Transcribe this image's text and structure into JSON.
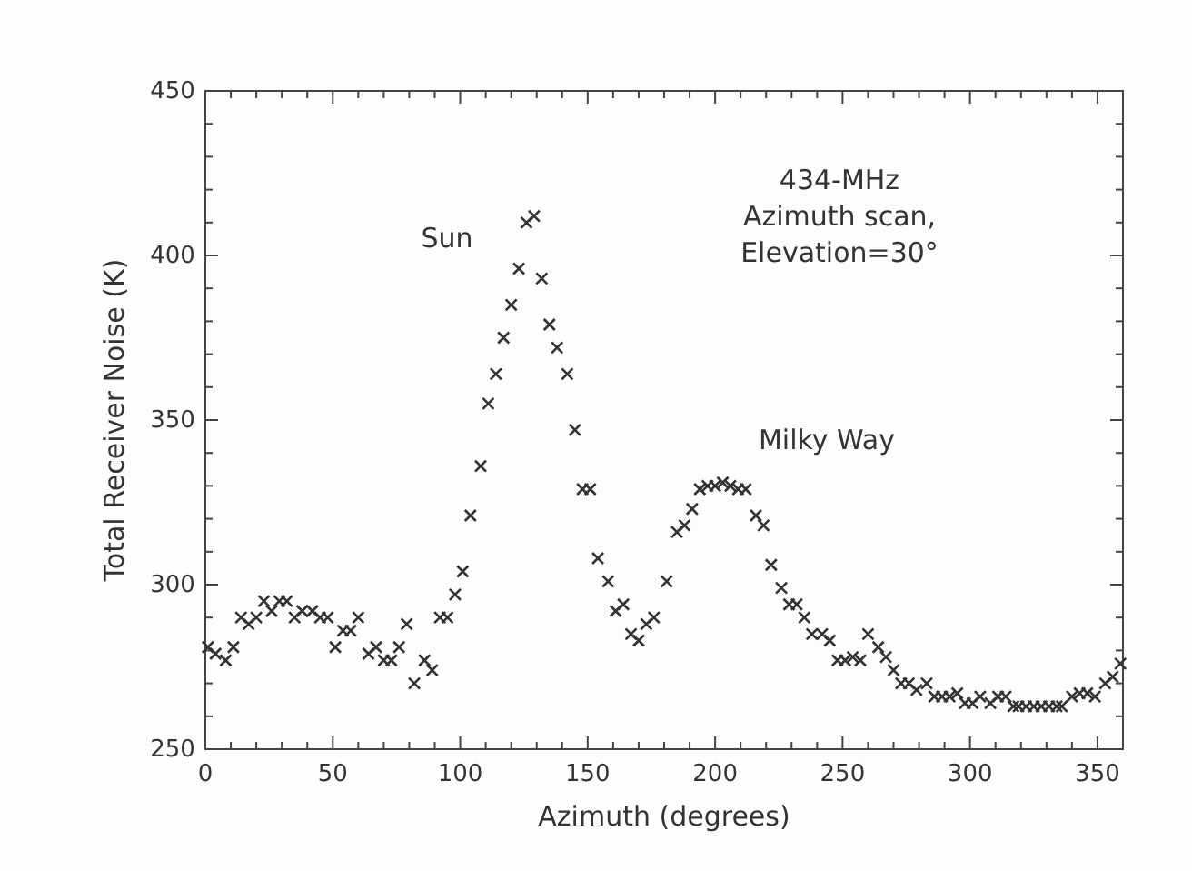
{
  "chart_data": {
    "type": "scatter",
    "xlabel": "Azimuth (degrees)",
    "ylabel": "Total Receiver Noise (K)",
    "marker": "cross",
    "grid": false,
    "xlim": [
      0,
      360
    ],
    "ylim": [
      250,
      450
    ],
    "xticks": [
      0,
      {
        "value": 10,
        "label": null
      },
      {
        "value": 20,
        "label": null
      },
      {
        "value": 30,
        "label": null
      },
      {
        "value": 40,
        "label": null
      },
      50,
      {
        "value": 60,
        "label": null
      },
      {
        "value": 70,
        "label": null
      },
      {
        "value": 80,
        "label": null
      },
      {
        "value": 90,
        "label": null
      },
      100,
      {
        "value": 110,
        "label": null
      },
      {
        "value": 120,
        "label": null
      },
      {
        "value": 130,
        "label": null
      },
      {
        "value": 140,
        "label": null
      },
      150,
      {
        "value": 160,
        "label": null
      },
      {
        "value": 170,
        "label": null
      },
      {
        "value": 180,
        "label": null
      },
      {
        "value": 190,
        "label": null
      },
      200,
      {
        "value": 210,
        "label": null
      },
      {
        "value": 220,
        "label": null
      },
      {
        "value": 230,
        "label": null
      },
      {
        "value": 240,
        "label": null
      },
      250,
      {
        "value": 260,
        "label": null
      },
      {
        "value": 270,
        "label": null
      },
      {
        "value": 280,
        "label": null
      },
      {
        "value": 290,
        "label": null
      },
      300,
      {
        "value": 310,
        "label": null
      },
      {
        "value": 320,
        "label": null
      },
      {
        "value": 330,
        "label": null
      },
      {
        "value": 340,
        "label": null
      },
      350,
      {
        "value": 360,
        "label": null
      }
    ],
    "yticks": [
      250,
      {
        "value": 260,
        "label": null
      },
      {
        "value": 270,
        "label": null
      },
      {
        "value": 280,
        "label": null
      },
      {
        "value": 290,
        "label": null
      },
      300,
      {
        "value": 310,
        "label": null
      },
      {
        "value": 320,
        "label": null
      },
      {
        "value": 330,
        "label": null
      },
      {
        "value": 340,
        "label": null
      },
      350,
      {
        "value": 360,
        "label": null
      },
      {
        "value": 370,
        "label": null
      },
      {
        "value": 380,
        "label": null
      },
      {
        "value": 390,
        "label": null
      },
      400,
      {
        "value": 410,
        "label": null
      },
      {
        "value": 420,
        "label": null
      },
      {
        "value": 430,
        "label": null
      },
      {
        "value": 440,
        "label": null
      },
      450
    ],
    "annotations": [
      "434-MHz",
      "Azimuth scan,",
      "Elevation=30°",
      "Sun",
      "Milky Way"
    ],
    "series": [
      {
        "color": "#333333",
        "x": [
          1,
          4,
          8,
          11,
          14,
          17,
          20,
          23,
          26,
          29,
          32,
          35,
          38,
          42,
          45,
          48,
          51,
          54,
          57,
          60,
          64,
          67,
          70,
          73,
          76,
          79,
          82,
          86,
          89,
          92,
          95,
          98,
          101,
          104,
          108,
          111,
          114,
          117,
          120,
          123,
          126,
          129,
          132,
          135,
          138,
          142,
          145,
          148,
          151,
          154,
          158,
          161,
          164,
          167,
          170,
          173,
          176,
          181,
          185,
          188,
          191,
          194,
          197,
          200,
          203,
          206,
          209,
          212,
          216,
          219,
          222,
          226,
          229,
          232,
          235,
          238,
          242,
          245,
          248,
          251,
          254,
          257,
          260,
          264,
          267,
          270,
          273,
          276,
          279,
          283,
          286,
          289,
          292,
          295,
          298,
          301,
          304,
          308,
          311,
          314,
          317,
          319,
          322,
          325,
          328,
          331,
          334,
          336,
          340,
          343,
          346,
          349,
          353,
          356,
          359
        ],
        "values": [
          281,
          279,
          277,
          281,
          290,
          288,
          290,
          295,
          292,
          295,
          295,
          290,
          292,
          292,
          290,
          290,
          281,
          286,
          286,
          290,
          279,
          281,
          277,
          277,
          281,
          288,
          270,
          277,
          274,
          290,
          290,
          297,
          304,
          321,
          336,
          355,
          364,
          375,
          385,
          396,
          410,
          412,
          393,
          379,
          372,
          364,
          347,
          329,
          329,
          308,
          301,
          292,
          294,
          285,
          283,
          288,
          290,
          301,
          316,
          318,
          323,
          329,
          330,
          330,
          331,
          330,
          329,
          329,
          321,
          318,
          306,
          299,
          294,
          294,
          290,
          285,
          285,
          283,
          277,
          277,
          278,
          277,
          285,
          281,
          278,
          274,
          270,
          270,
          268,
          270,
          266,
          266,
          266,
          267,
          264,
          264,
          266,
          264,
          266,
          266,
          263,
          263,
          263,
          263,
          263,
          263,
          263,
          263,
          266,
          267,
          267,
          266,
          270,
          272,
          276
        ]
      }
    ]
  }
}
